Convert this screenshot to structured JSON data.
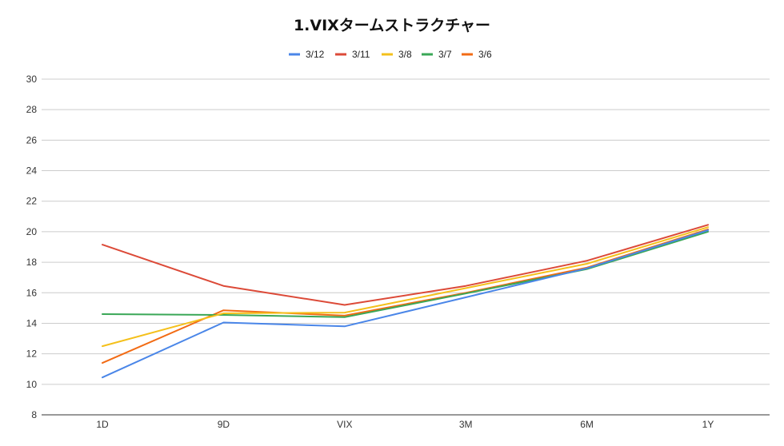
{
  "chart_data": {
    "type": "line",
    "title": "1.VIXタームストラクチャー",
    "xlabel": "",
    "ylabel": "",
    "categories": [
      "1D",
      "9D",
      "VIX",
      "3M",
      "6M",
      "1Y"
    ],
    "ylim": [
      8,
      30
    ],
    "yticks": [
      8,
      10,
      12,
      14,
      16,
      18,
      20,
      22,
      24,
      26,
      28,
      30
    ],
    "grid": true,
    "legend_position": "top-center",
    "series": [
      {
        "name": "3/12",
        "color": "#4a86e8",
        "values": [
          10.45,
          14.05,
          13.8,
          15.7,
          17.6,
          20.1
        ]
      },
      {
        "name": "3/11",
        "color": "#dc4a38",
        "values": [
          19.15,
          16.45,
          15.2,
          16.45,
          18.1,
          20.45
        ]
      },
      {
        "name": "3/8",
        "color": "#f4c01b",
        "values": [
          12.5,
          14.65,
          14.7,
          16.3,
          17.9,
          20.3
        ]
      },
      {
        "name": "3/7",
        "color": "#3aa757",
        "values": [
          14.6,
          14.55,
          14.4,
          15.95,
          17.55,
          20.0
        ]
      },
      {
        "name": "3/6",
        "color": "#f26b14",
        "values": [
          11.4,
          14.85,
          14.5,
          16.0,
          17.65,
          20.15
        ]
      }
    ]
  }
}
